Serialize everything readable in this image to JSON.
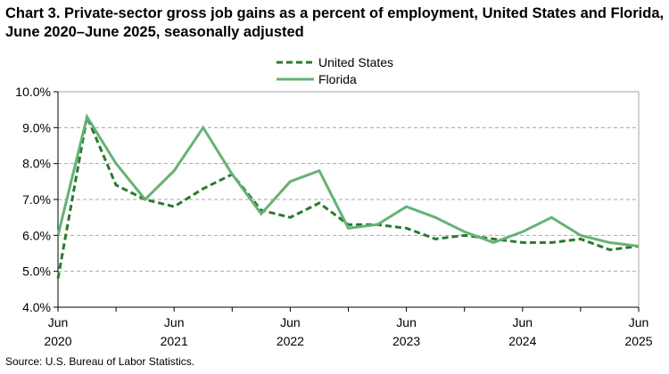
{
  "chart_data": {
    "type": "line",
    "title": "Chart 3. Private-sector gross job gains as a percent of employment, United States and Florida, June 2020–June 2025, seasonally adjusted",
    "source": "Source: U.S. Bureau of Labor Statistics.",
    "x": [
      "Jun 2020",
      "Sep 2020",
      "Dec 2020",
      "Mar 2021",
      "Jun 2021",
      "Sep 2021",
      "Dec 2021",
      "Mar 2022",
      "Jun 2022",
      "Sep 2022",
      "Dec 2022",
      "Mar 2023",
      "Jun 2023",
      "Sep 2023",
      "Dec 2023",
      "Mar 2024",
      "Jun 2024",
      "Sep 2024",
      "Dec 2024",
      "Mar 2025",
      "Jun 2025"
    ],
    "x_tick_labels": [
      {
        "index": 0,
        "line1": "Jun",
        "line2": "2020"
      },
      {
        "index": 4,
        "line1": "Jun",
        "line2": "2021"
      },
      {
        "index": 8,
        "line1": "Jun",
        "line2": "2022"
      },
      {
        "index": 12,
        "line1": "Jun",
        "line2": "2023"
      },
      {
        "index": 16,
        "line1": "Jun",
        "line2": "2024"
      },
      {
        "index": 20,
        "line1": "Jun",
        "line2": "2025"
      }
    ],
    "ylim": [
      4.0,
      10.0
    ],
    "y_ticks": [
      "4.0%",
      "5.0%",
      "6.0%",
      "7.0%",
      "8.0%",
      "9.0%",
      "10.0%"
    ],
    "grid": "horizontal dashed",
    "legend_placement": "top-center",
    "series": [
      {
        "name": "United States",
        "style": "dashed",
        "color": "#2a7a2e",
        "values": [
          4.8,
          9.3,
          7.4,
          7.0,
          6.8,
          7.3,
          7.7,
          6.7,
          6.5,
          6.9,
          6.3,
          6.3,
          6.2,
          5.9,
          6.0,
          5.9,
          5.8,
          5.8,
          5.9,
          5.6,
          5.7
        ]
      },
      {
        "name": "Florida",
        "style": "solid",
        "color": "#66b274",
        "values": [
          6.0,
          9.3,
          8.0,
          7.0,
          7.8,
          9.0,
          7.7,
          6.6,
          7.5,
          7.8,
          6.2,
          6.3,
          6.8,
          6.5,
          6.1,
          5.8,
          6.1,
          6.5,
          6.0,
          5.8,
          5.7
        ]
      }
    ]
  }
}
